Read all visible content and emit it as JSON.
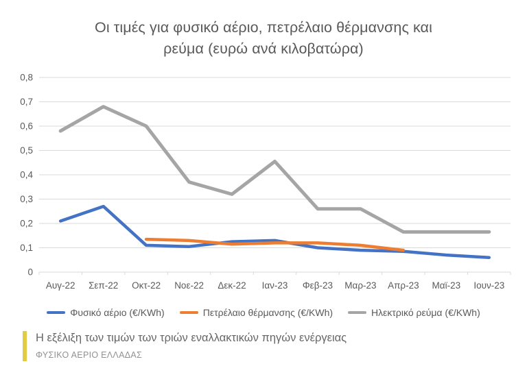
{
  "title_lines": [
    "Οι τιμές για φυσικό αέριο, πετρέλαιο θέρμανσης και",
    "ρεύμα (ευρώ ανά κιλοβατώρα)"
  ],
  "footer": {
    "caption": "Η εξέλιξη των τιμών των τριών εναλλακτικών πηγών ενέργειας",
    "source": "ΦΥΣΙΚΟ ΑΕΡΙΟ ΕΛΛΑΔΑΣ",
    "accent_bar_color": "#E2CB45"
  },
  "chart_data": {
    "type": "line",
    "title": "Οι τιμές για φυσικό αέριο, πετρέλαιο θέρμανσης και ρεύμα (ευρώ ανά κιλοβατώρα)",
    "xlabel": "",
    "ylabel": "",
    "categories": [
      "Αυγ-22",
      "Σεπ-22",
      "Οκτ-22",
      "Νοε-22",
      "Δεκ-22",
      "Ιαν-23",
      "Φεβ-23",
      "Μαρ-23",
      "Απρ-23",
      "Μαϊ-23",
      "Ιουν-23"
    ],
    "series": [
      {
        "name": "Φυσικό αέριο (€/KWh)",
        "color": "#4472C4",
        "values": [
          0.21,
          0.27,
          0.11,
          0.105,
          0.125,
          0.13,
          0.1,
          0.09,
          0.085,
          0.07,
          0.06
        ]
      },
      {
        "name": "Πετρέλαιο θέρμανσης (€/KWh)",
        "color": "#ED7D31",
        "values": [
          null,
          null,
          0.135,
          0.13,
          0.115,
          0.12,
          0.12,
          0.11,
          0.09,
          null,
          null
        ]
      },
      {
        "name": "Ηλεκτρικό ρεύμα (€/KWh)",
        "color": "#A5A5A5",
        "values": [
          0.58,
          0.68,
          0.6,
          0.37,
          0.32,
          0.455,
          0.26,
          0.26,
          0.165,
          0.165,
          0.165
        ]
      }
    ],
    "ylim": [
      0,
      0.8
    ],
    "ytick_step": 0.1,
    "ytick_labels": [
      "0",
      "0,1",
      "0,2",
      "0,3",
      "0,4",
      "0,5",
      "0,6",
      "0,7",
      "0,8"
    ],
    "grid": true,
    "legend_position": "bottom",
    "colors": {
      "grid": "#D9D9D9",
      "axis_text": "#595959"
    }
  }
}
